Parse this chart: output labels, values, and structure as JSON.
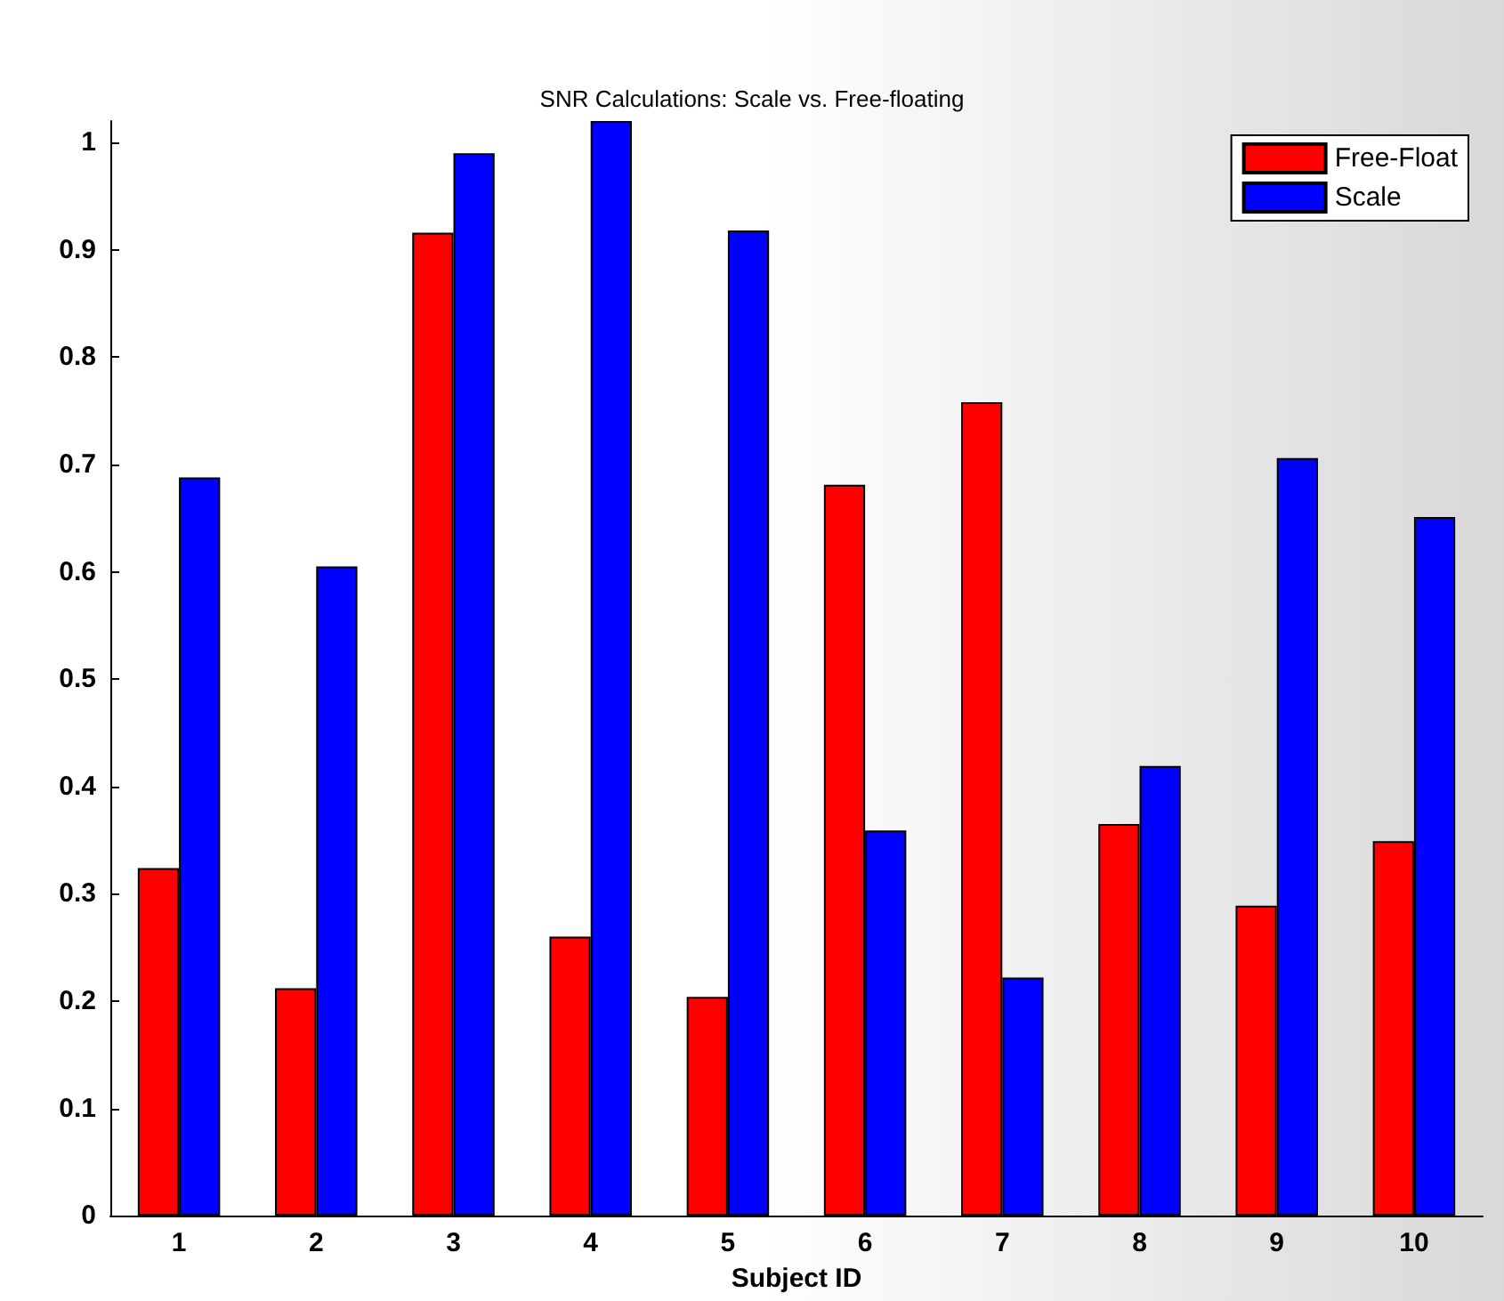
{
  "chart_data": {
    "type": "bar",
    "title": "SNR Calculations: Scale vs. Free-floating",
    "xlabel": "Subject ID",
    "categories": [
      "1",
      "2",
      "3",
      "4",
      "5",
      "6",
      "7",
      "8",
      "9",
      "10"
    ],
    "series": [
      {
        "name": "Free-Float",
        "color": "#ff0000",
        "values": [
          0.324,
          0.212,
          0.916,
          0.26,
          0.204,
          0.681,
          0.758,
          0.365,
          0.289,
          0.349
        ]
      },
      {
        "name": "Scale",
        "color": "#0000ff",
        "values": [
          0.688,
          0.605,
          0.99,
          1.02,
          0.918,
          0.359,
          0.222,
          0.419,
          0.706,
          0.651
        ]
      }
    ],
    "ylim": [
      0,
      1.02
    ],
    "yticks": [
      0,
      0.1,
      0.2,
      0.3,
      0.4,
      0.5,
      0.6,
      0.7,
      0.8,
      0.9,
      1
    ],
    "grid": false,
    "legend": "top right"
  }
}
